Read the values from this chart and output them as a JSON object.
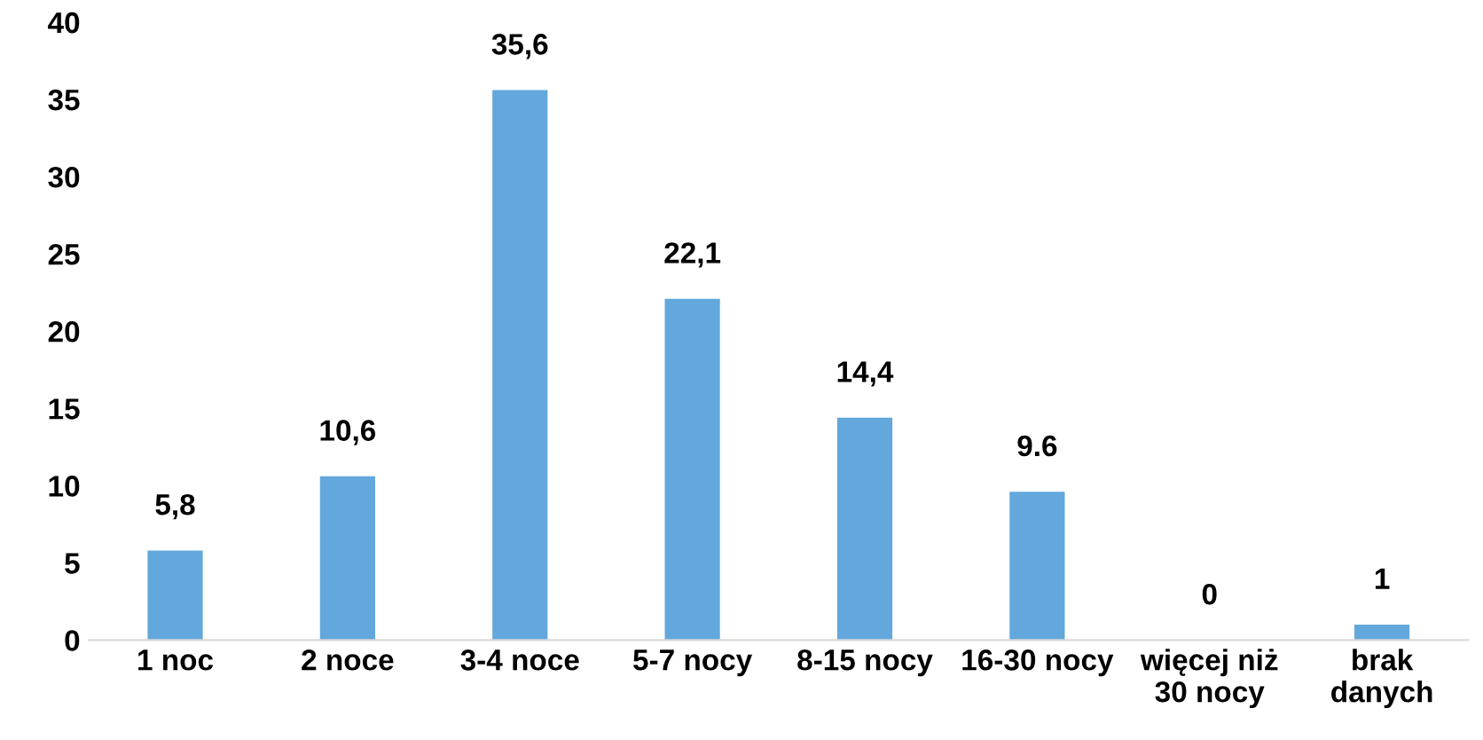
{
  "chart_data": {
    "type": "bar",
    "categories": [
      "1 noc",
      "2 noce",
      "3-4 noce",
      "5-7 nocy",
      "8-15 nocy",
      "16-30 nocy",
      "więcej niż\n30 nocy",
      "brak\ndanych"
    ],
    "values": [
      5.8,
      10.6,
      35.6,
      22.1,
      14.4,
      9.6,
      0,
      1
    ],
    "value_labels": [
      "5,8",
      "10,6",
      "35,6",
      "22,1",
      "14,4",
      "9.6",
      "0",
      "1"
    ],
    "color": "#62a8dc",
    "ylim": [
      0,
      40
    ],
    "yticks": [
      0,
      5,
      10,
      15,
      20,
      25,
      30,
      35,
      40
    ],
    "grid": false,
    "legend": false
  }
}
